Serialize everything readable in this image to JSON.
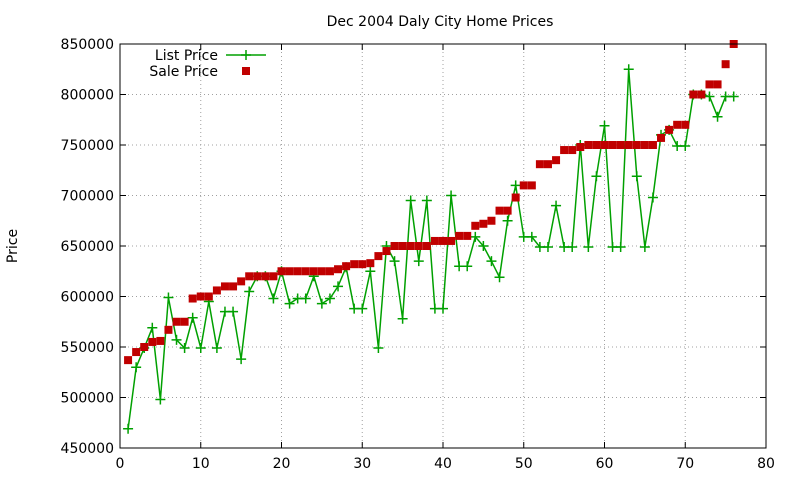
{
  "chart_data": {
    "type": "line",
    "title": "Dec 2004 Daly City Home Prices",
    "xlabel": "",
    "ylabel": "Price",
    "xlim": [
      0,
      80
    ],
    "ylim": [
      450000,
      850000
    ],
    "xticks": [
      "0",
      "10",
      "20",
      "30",
      "40",
      "50",
      "60",
      "70",
      "80"
    ],
    "yticks": [
      "450000",
      "500000",
      "550000",
      "600000",
      "650000",
      "700000",
      "750000",
      "800000",
      "850000"
    ],
    "grid": true,
    "legend_position": "top-left",
    "x": [
      1,
      2,
      3,
      4,
      5,
      6,
      7,
      8,
      9,
      10,
      11,
      12,
      13,
      14,
      15,
      16,
      17,
      18,
      19,
      20,
      21,
      22,
      23,
      24,
      25,
      26,
      27,
      28,
      29,
      30,
      31,
      32,
      33,
      34,
      35,
      36,
      37,
      38,
      39,
      40,
      41,
      42,
      43,
      44,
      45,
      46,
      47,
      48,
      49,
      50,
      51,
      52,
      53,
      54,
      55,
      56,
      57,
      58,
      59,
      60,
      61,
      62,
      63,
      64,
      65,
      66,
      67,
      68,
      69,
      70,
      71,
      72,
      73,
      74,
      75,
      76
    ],
    "series": [
      {
        "name": "List Price",
        "style": "linespoints",
        "color": "#00a000",
        "values": [
          469000,
          530000,
          549000,
          569000,
          498000,
          599000,
          557000,
          549000,
          579000,
          549000,
          595000,
          549000,
          585000,
          585000,
          538000,
          605000,
          620000,
          620000,
          598000,
          625000,
          593000,
          598000,
          598000,
          620000,
          593000,
          598000,
          610000,
          629000,
          588000,
          588000,
          625000,
          549000,
          650000,
          635000,
          578000,
          695000,
          635000,
          695000,
          588000,
          588000,
          700000,
          630000,
          630000,
          659000,
          650000,
          635000,
          619000,
          675000,
          710000,
          659000,
          659000,
          649000,
          649000,
          690000,
          649000,
          649000,
          750000,
          649000,
          719000,
          769000,
          649000,
          649000,
          825000,
          719000,
          649000,
          698000,
          760000,
          765000,
          749000,
          749000,
          800000,
          800000,
          798000,
          778000,
          798000,
          798000
        ]
      },
      {
        "name": "Sale Price",
        "style": "points",
        "color": "#c00000",
        "values": [
          537000,
          545000,
          550000,
          555000,
          556000,
          567000,
          575000,
          575000,
          598000,
          600000,
          600000,
          606000,
          610000,
          610000,
          615000,
          620000,
          620000,
          620000,
          620000,
          625000,
          625000,
          625000,
          625000,
          625000,
          625000,
          625000,
          627000,
          630000,
          632000,
          632000,
          633000,
          640000,
          645000,
          650000,
          650000,
          650000,
          650000,
          650000,
          655000,
          655000,
          655000,
          660000,
          660000,
          670000,
          672000,
          675000,
          685000,
          685000,
          698000,
          710000,
          710000,
          731000,
          731000,
          735000,
          745000,
          745000,
          748000,
          750000,
          750000,
          750000,
          750000,
          750000,
          750000,
          750000,
          750000,
          750000,
          757000,
          765000,
          770000,
          770000,
          800000,
          800000,
          810000,
          810000,
          830000,
          850000
        ]
      }
    ]
  }
}
